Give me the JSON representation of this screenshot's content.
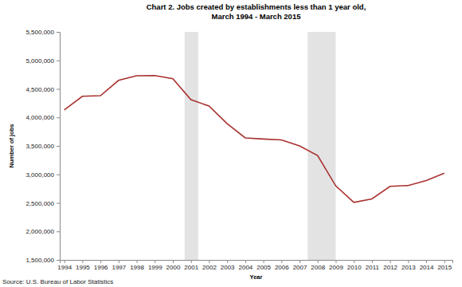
{
  "chart_data": {
    "type": "line",
    "title": "Chart 2. Jobs created by establishments less than 1 year old,",
    "subtitle": "March 1994 - March 2015",
    "x_label": "Year",
    "y_label": "Number of jobs",
    "source": "Source: U.S. Bureau of Labor Statistics",
    "x": [
      1994,
      1995,
      1996,
      1997,
      1998,
      1999,
      2000,
      2001,
      2002,
      2003,
      2004,
      2005,
      2006,
      2007,
      2008,
      2009,
      2010,
      2011,
      2012,
      2013,
      2014,
      2015
    ],
    "values": [
      4130000,
      4370000,
      4380000,
      4650000,
      4730000,
      4735000,
      4680000,
      4310000,
      4200000,
      3890000,
      3640000,
      3620000,
      3605000,
      3500000,
      3330000,
      2800000,
      2510000,
      2570000,
      2790000,
      2805000,
      2890000,
      3020000
    ],
    "color": "#a8312f",
    "shaded_periods": [
      [
        2000.65,
        2001.4
      ],
      [
        2007.45,
        2009.0
      ]
    ],
    "xlim": [
      1993.75,
      2015.45
    ],
    "xticks": [
      1994,
      1995,
      1996,
      1997,
      1998,
      1999,
      2000,
      2001,
      2002,
      2003,
      2004,
      2005,
      2006,
      2007,
      2008,
      2009,
      2010,
      2011,
      2012,
      2013,
      2014,
      2015
    ],
    "ylim": [
      1500000,
      5500000
    ],
    "yticks": [
      {
        "value": 1500000,
        "label": "1,500,000"
      },
      {
        "value": 2000000,
        "label": "2,000,000"
      },
      {
        "value": 2500000,
        "label": "2,500,000"
      },
      {
        "value": 3000000,
        "label": "3,000,000"
      },
      {
        "value": 3500000,
        "label": "3,500,000"
      },
      {
        "value": 4000000,
        "label": "4,000,000"
      },
      {
        "value": 4500000,
        "label": "4,500,000"
      },
      {
        "value": 5000000,
        "label": "5,000,000"
      },
      {
        "value": 5500000,
        "label": "5,500,000"
      }
    ],
    "grid": false
  }
}
